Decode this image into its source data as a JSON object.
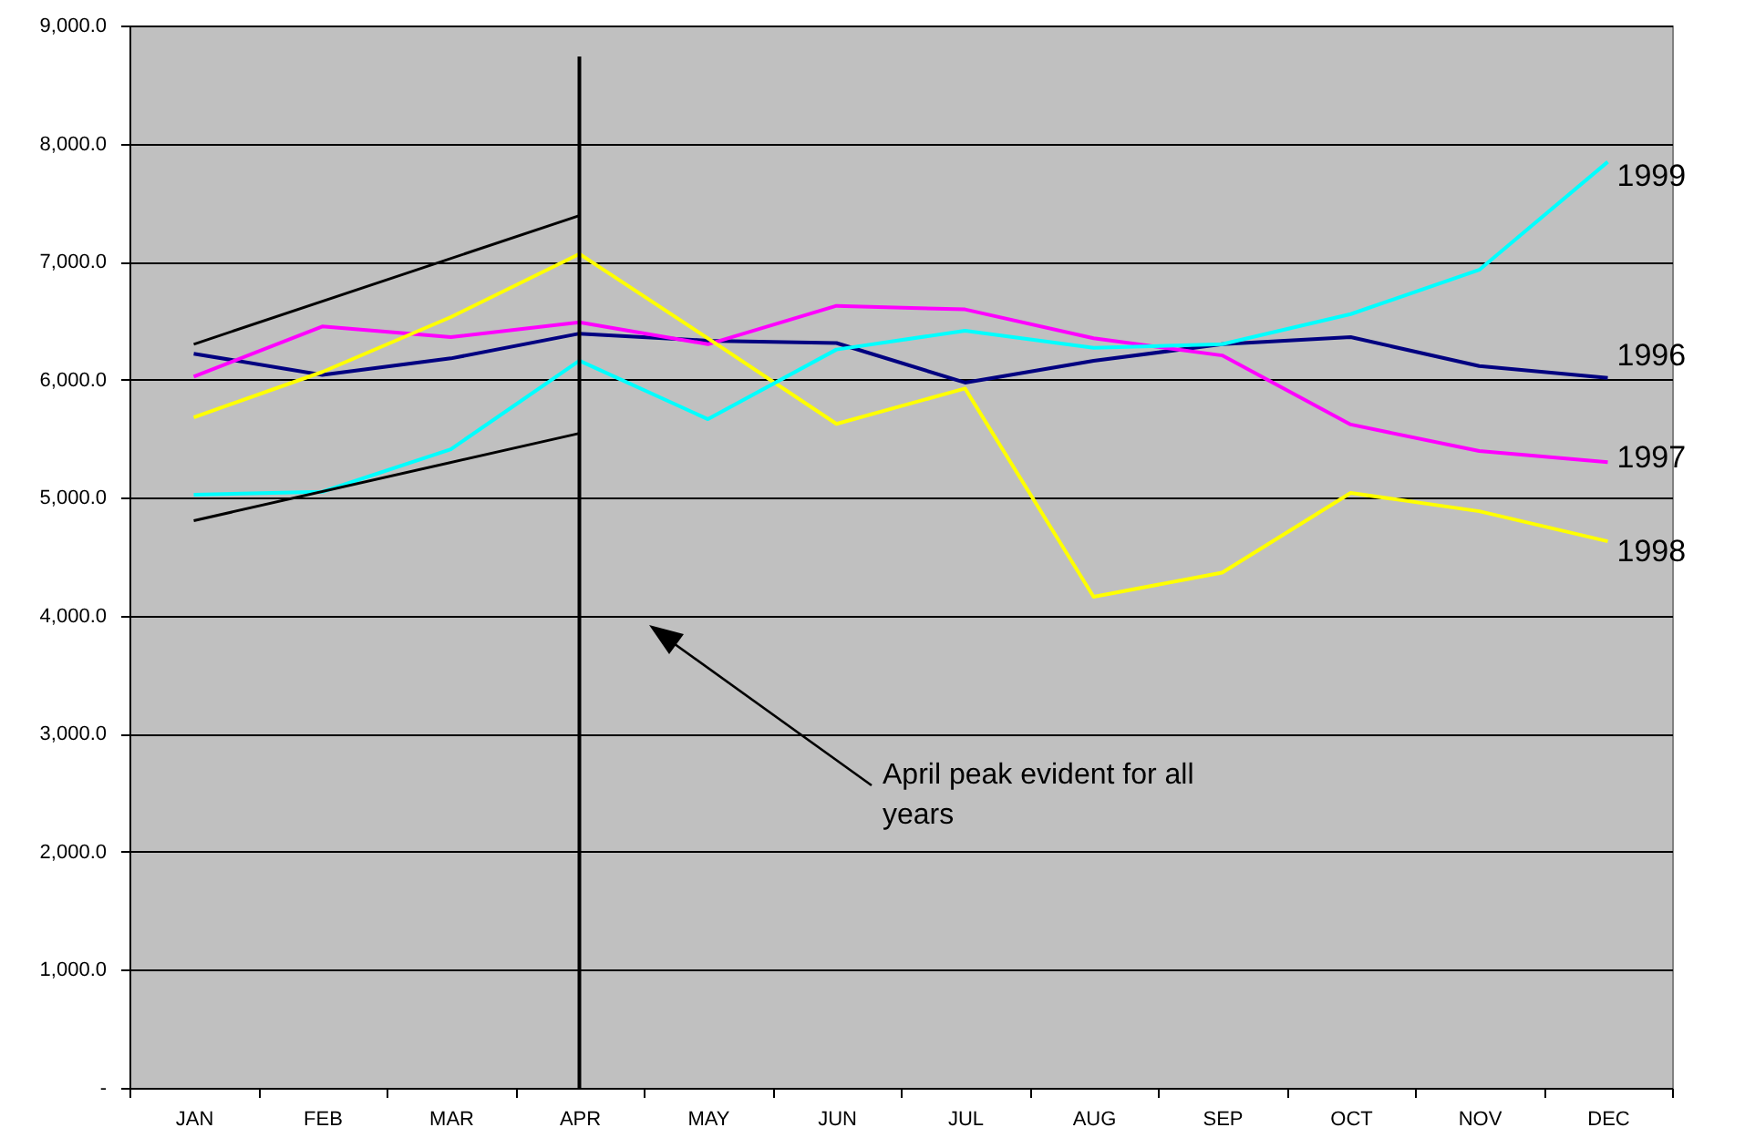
{
  "chart_data": {
    "type": "line",
    "categories": [
      "JAN",
      "FEB",
      "MAR",
      "APR",
      "MAY",
      "JUN",
      "JUL",
      "AUG",
      "SEP",
      "OCT",
      "NOV",
      "DEC"
    ],
    "ylim": [
      0,
      9000
    ],
    "yticks": [
      {
        "value": 0,
        "label": "-"
      },
      {
        "value": 1000,
        "label": "1,000.0"
      },
      {
        "value": 2000,
        "label": "2,000.0"
      },
      {
        "value": 3000,
        "label": "3,000.0"
      },
      {
        "value": 4000,
        "label": "4,000.0"
      },
      {
        "value": 5000,
        "label": "5,000.0"
      },
      {
        "value": 6000,
        "label": "6,000.0"
      },
      {
        "value": 7000,
        "label": "7,000.0"
      },
      {
        "value": 8000,
        "label": "8,000.0"
      },
      {
        "value": 9000,
        "label": "9,000.0"
      }
    ],
    "grid": "y",
    "series": [
      {
        "name": "1996",
        "color": "#000080",
        "values": [
          6220,
          6040,
          6180,
          6390,
          6330,
          6310,
          5975,
          6160,
          6300,
          6360,
          6115,
          6015
        ]
      },
      {
        "name": "1997",
        "color": "#ff00ff",
        "values": [
          6025,
          6450,
          6360,
          6485,
          6300,
          6625,
          6595,
          6350,
          6205,
          5620,
          5395,
          5300
        ]
      },
      {
        "name": "1998",
        "color": "#ffff00",
        "values": [
          5680,
          6065,
          6530,
          7065,
          6350,
          5625,
          5925,
          4160,
          4365,
          5040,
          4885,
          4630
        ]
      },
      {
        "name": "1999",
        "color": "#00ffff",
        "values": [
          5025,
          5050,
          5410,
          6160,
          5665,
          6255,
          6415,
          6270,
          6300,
          6555,
          6930,
          7845
        ]
      },
      {
        "type": "line",
        "color": "#000000",
        "x": [
          "JAN",
          "APR"
        ],
        "values": [
          6300,
          7390
        ]
      },
      {
        "type": "line",
        "color": "#000000",
        "x": [
          "JAN",
          "APR"
        ],
        "values": [
          4805,
          5545
        ]
      }
    ],
    "ref_lines": [
      {
        "axis": "x",
        "value": "APR",
        "color": "#000000"
      }
    ],
    "annotations": [
      "April peak evident for all years"
    ]
  }
}
